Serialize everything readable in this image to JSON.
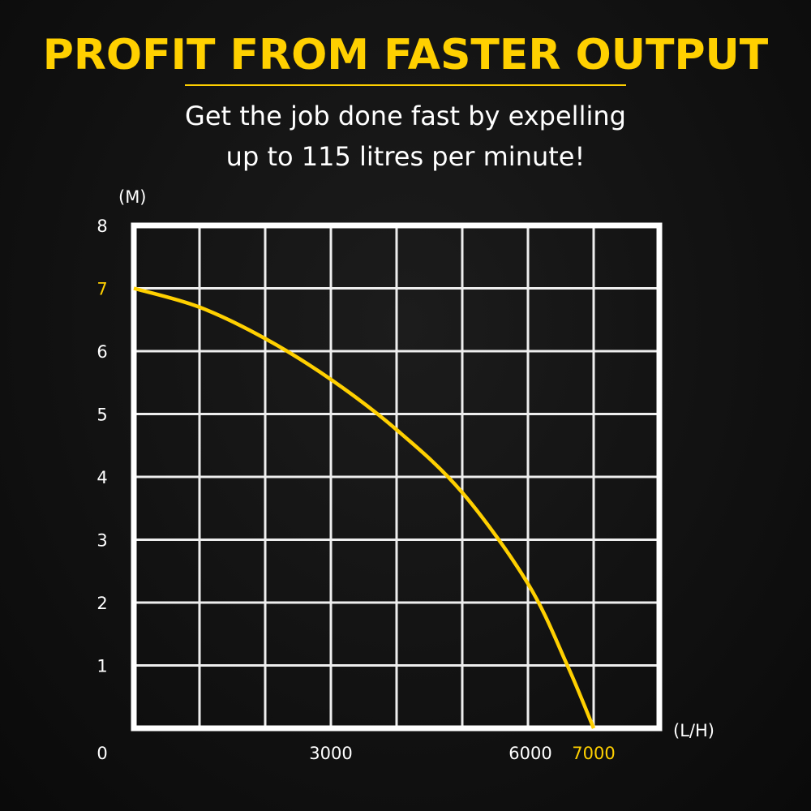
{
  "header": {
    "title": "PROFIT FROM FASTER OUTPUT",
    "subtitle_line1": "Get the job done fast by expelling",
    "subtitle_line2": "up to 115 litres per minute!"
  },
  "colors": {
    "accent": "#ffd000",
    "grid": "#ffffff",
    "background": "#111111"
  },
  "chart_data": {
    "type": "line",
    "title": "",
    "xlabel": "(L/H)",
    "ylabel": "(M)",
    "xlim": [
      0,
      8000
    ],
    "ylim": [
      0,
      8
    ],
    "grid": true,
    "x_ticks": [
      {
        "value": 0,
        "label": "0"
      },
      {
        "value": 3000,
        "label": "3000"
      },
      {
        "value": 6000,
        "label": "6000"
      },
      {
        "value": 7000,
        "label": "7000",
        "highlight": true
      }
    ],
    "y_ticks": [
      {
        "value": 1,
        "label": "1"
      },
      {
        "value": 2,
        "label": "2"
      },
      {
        "value": 3,
        "label": "3"
      },
      {
        "value": 4,
        "label": "4"
      },
      {
        "value": 5,
        "label": "5"
      },
      {
        "value": 6,
        "label": "6"
      },
      {
        "value": 7,
        "label": "7",
        "highlight": true
      },
      {
        "value": 8,
        "label": "8"
      }
    ],
    "series": [
      {
        "x": [
          0,
          1000,
          2000,
          3000,
          4000,
          5000,
          6000,
          6600,
          7000
        ],
        "y": [
          7.0,
          6.7,
          6.2,
          5.55,
          4.75,
          3.75,
          2.3,
          1.0,
          0.0
        ]
      }
    ]
  }
}
